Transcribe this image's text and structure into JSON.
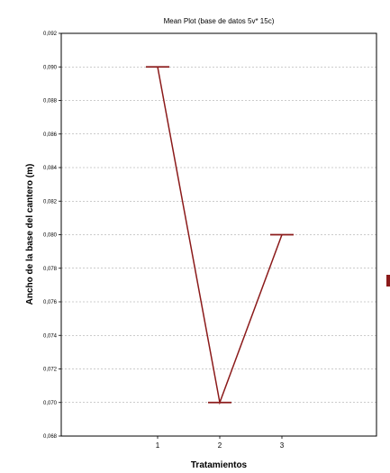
{
  "chart_data": {
    "type": "line",
    "title": "Mean Plot (base de datos 5v* 15c)",
    "xlabel": "Tratamientos",
    "ylabel": "Ancho de la base del cantero (m)",
    "categories": [
      "1",
      "2",
      "3"
    ],
    "series": [
      {
        "values": [
          0.09,
          0.07,
          0.08
        ],
        "color": "#8b1a1a"
      }
    ],
    "ylim": [
      0.068,
      0.092
    ],
    "yticks": [
      "0,068",
      "0,070",
      "0,072",
      "0,074",
      "0,076",
      "0,078",
      "0,080",
      "0,082",
      "0,084",
      "0,086",
      "0,088",
      "0,090",
      "0,092"
    ],
    "grid": true,
    "legend_position": "right"
  }
}
